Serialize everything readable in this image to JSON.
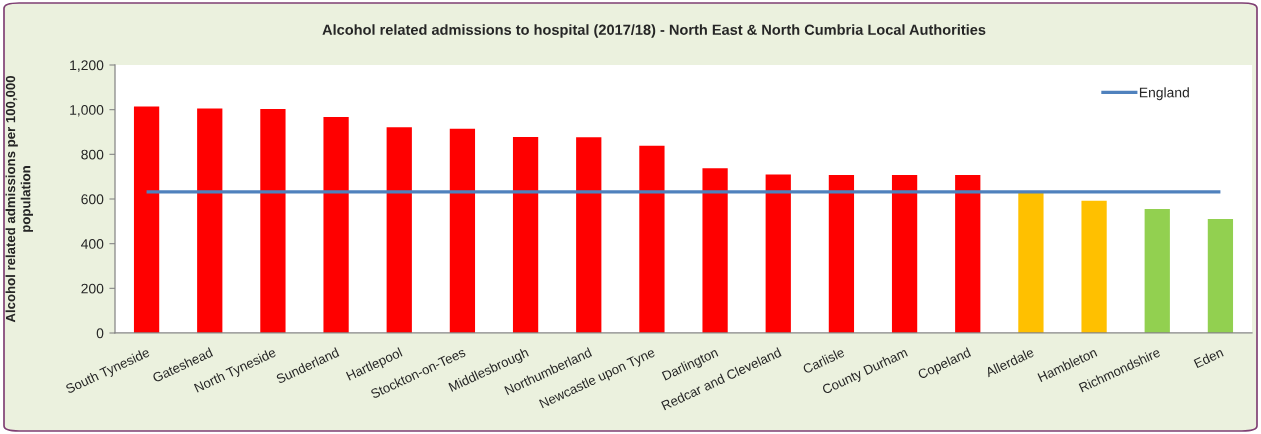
{
  "chart_data": {
    "type": "bar",
    "title": "Alcohol related admissions to hospital (2017/18) - North East & North Cumbria Local Authorities",
    "ylabel": "Alcohol related admissions per 100,000\npopulation",
    "categories": [
      "South Tyneside",
      "Gateshead",
      "North Tyneside",
      "Sunderland",
      "Hartlepool",
      "Stockton-on-Tees",
      "Middlesbrough",
      "Northumberland",
      "Newcastle upon Tyne",
      "Darlington",
      "Redcar and Cleveland",
      "Carlisle",
      "County Durham",
      "Copeland",
      "Allerdale",
      "Hambleton",
      "Richmondshire",
      "Eden"
    ],
    "series": [
      {
        "colors": [
          "#ff0000",
          "#ff0000",
          "#ff0000",
          "#ff0000",
          "#ff0000",
          "#ff0000",
          "#ff0000",
          "#ff0000",
          "#ff0000",
          "#ff0000",
          "#ff0000",
          "#ff0000",
          "#ff0000",
          "#ff0000",
          "#ffc000",
          "#ffc000",
          "#92d050",
          "#92d050"
        ],
        "values": [
          1014,
          1005,
          1003,
          967,
          921,
          914,
          878,
          877,
          838,
          738,
          710,
          708,
          708,
          707,
          627,
          592,
          555,
          510
        ]
      },
      {
        "type": "line",
        "name": "England",
        "color": "#4f81bd",
        "values": [
          632,
          632,
          632,
          632,
          632,
          632,
          632,
          632,
          632,
          632,
          632,
          632,
          632,
          632,
          632,
          632,
          632,
          632
        ]
      }
    ],
    "ylim": [
      0,
      1200
    ],
    "yticks": [
      0,
      200,
      400,
      600,
      800,
      {
        "value": 1000,
        "label": "1,000"
      },
      {
        "value": 1200,
        "label": "1,200"
      }
    ],
    "legend": "top right",
    "grid": false
  }
}
